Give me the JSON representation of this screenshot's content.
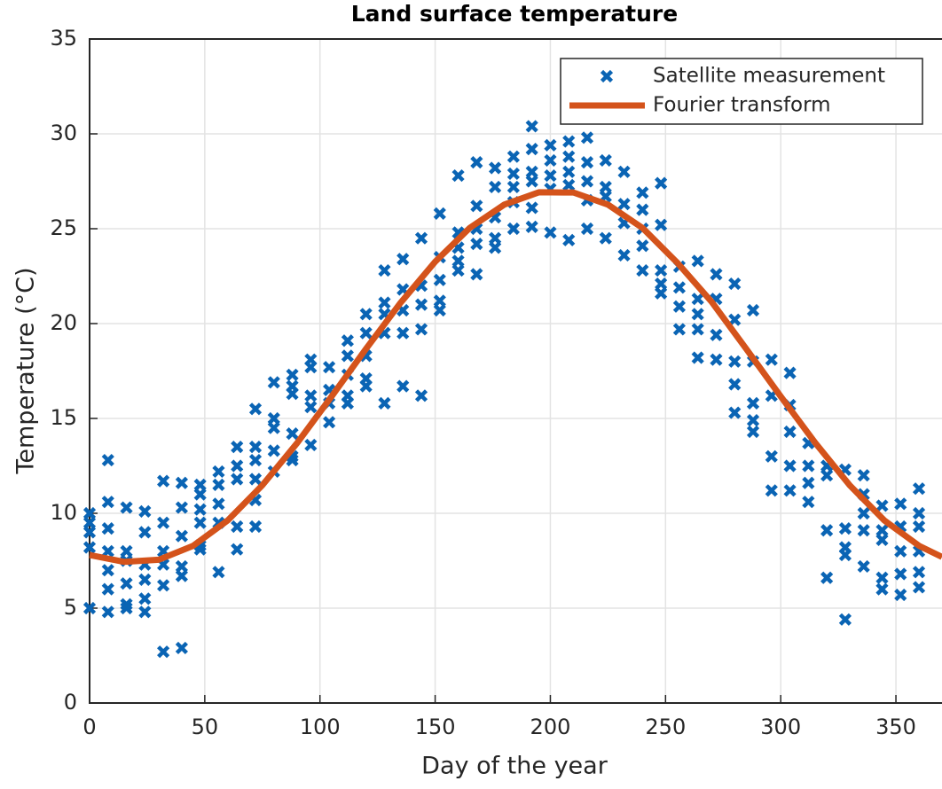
{
  "chart_data": {
    "type": "scatter",
    "title": "Land surface temperature",
    "x_label": "Day of the year",
    "y_label": "Temperature (°C)",
    "xlim": [
      0,
      370
    ],
    "ylim": [
      0,
      35
    ],
    "xticks": [
      0,
      50,
      100,
      150,
      200,
      250,
      300,
      350
    ],
    "yticks": [
      0,
      5,
      10,
      15,
      20,
      25,
      30,
      35
    ],
    "grid": true,
    "legend": "upper right",
    "series": [
      {
        "name": "Satellite measurement",
        "type": "scatter",
        "color": "#0a64b4",
        "x": [
          0,
          0,
          0,
          0,
          0,
          8,
          8,
          8,
          8,
          8,
          8,
          8,
          16,
          16,
          16,
          16,
          16,
          16,
          24,
          24,
          24,
          24,
          24,
          24,
          32,
          32,
          32,
          32,
          32,
          32,
          40,
          40,
          40,
          40,
          40,
          40,
          48,
          48,
          48,
          48,
          48,
          48,
          56,
          56,
          56,
          56,
          56,
          64,
          64,
          64,
          64,
          64,
          72,
          72,
          72,
          72,
          72,
          72,
          80,
          80,
          80,
          80,
          80,
          88,
          88,
          88,
          88,
          88,
          88,
          96,
          96,
          96,
          96,
          96,
          104,
          104,
          104,
          104,
          112,
          112,
          112,
          112,
          112,
          120,
          120,
          120,
          120,
          120,
          128,
          128,
          128,
          128,
          128,
          136,
          136,
          136,
          136,
          136,
          144,
          144,
          144,
          144,
          144,
          152,
          152,
          152,
          152,
          152,
          160,
          160,
          160,
          160,
          160,
          168,
          168,
          168,
          168,
          168,
          176,
          176,
          176,
          176,
          176,
          184,
          184,
          184,
          184,
          184,
          192,
          192,
          192,
          192,
          192,
          192,
          200,
          200,
          200,
          200,
          200,
          208,
          208,
          208,
          208,
          208,
          216,
          216,
          216,
          216,
          216,
          224,
          224,
          224,
          224,
          232,
          232,
          232,
          232,
          240,
          240,
          240,
          240,
          240,
          248,
          248,
          248,
          248,
          248,
          256,
          256,
          256,
          256,
          264,
          264,
          264,
          264,
          264,
          272,
          272,
          272,
          272,
          280,
          280,
          280,
          280,
          280,
          288,
          288,
          288,
          288,
          288,
          296,
          296,
          296,
          296,
          304,
          304,
          304,
          304,
          304,
          312,
          312,
          312,
          312,
          320,
          320,
          320,
          320,
          328,
          328,
          328,
          328,
          328,
          336,
          336,
          336,
          336,
          336,
          344,
          344,
          344,
          344,
          344,
          352,
          352,
          352,
          352,
          352,
          360,
          360,
          360,
          360,
          360,
          360
        ],
        "values": [
          10,
          9.5,
          9,
          8.2,
          5,
          12.8,
          10.6,
          9.2,
          8,
          7,
          6,
          4.8,
          10.3,
          8,
          7.5,
          6.3,
          5.2,
          5,
          10.1,
          9,
          7.3,
          6.5,
          5.5,
          4.8,
          11.7,
          9.5,
          8,
          7.3,
          6.2,
          2.7,
          11.6,
          10.3,
          8.8,
          7.2,
          6.7,
          2.9,
          11.5,
          11,
          10.2,
          9.5,
          8.3,
          8.1,
          12.2,
          11.5,
          10.5,
          9.5,
          6.9,
          13.5,
          12.5,
          11.8,
          9.3,
          8.1,
          15.5,
          13.5,
          12.8,
          11.8,
          10.7,
          9.3,
          16.9,
          15,
          14.5,
          13.3,
          12.2,
          17.3,
          16.7,
          16.3,
          14.2,
          13,
          12.8,
          18.1,
          17.7,
          16.2,
          15.6,
          13.6,
          17.7,
          16.5,
          15.8,
          14.8,
          19.1,
          18.3,
          17.3,
          16.2,
          15.8,
          20.5,
          19.5,
          18.3,
          17.1,
          16.7,
          22.8,
          21.1,
          20.5,
          19.5,
          15.8,
          23.4,
          21.8,
          20.7,
          19.5,
          16.7,
          24.5,
          22,
          21,
          19.7,
          16.2,
          25.8,
          23.5,
          22.3,
          21.2,
          20.7,
          27.8,
          24.8,
          24,
          23.3,
          22.8,
          28.5,
          26.2,
          25,
          24.2,
          22.6,
          28.2,
          27.2,
          25.6,
          24.5,
          24,
          28.8,
          27.9,
          27.2,
          26.4,
          25,
          30.4,
          29.2,
          28,
          27.5,
          26.1,
          25.1,
          29.4,
          28.6,
          27.8,
          27.1,
          24.8,
          29.6,
          28.8,
          28,
          27.3,
          24.4,
          29.8,
          28.5,
          27.5,
          26.5,
          25,
          28.6,
          27.2,
          26.7,
          24.5,
          28,
          26.3,
          25.3,
          23.6,
          26.9,
          26,
          25,
          24.1,
          22.8,
          27.4,
          25.2,
          22.8,
          22.1,
          21.6,
          23,
          21.9,
          20.9,
          19.7,
          23.3,
          21.3,
          20.5,
          19.7,
          18.2,
          22.6,
          21.3,
          19.4,
          18.1,
          22.1,
          20.2,
          18,
          16.8,
          15.3,
          20.7,
          18,
          15.8,
          14.9,
          14.3,
          18.1,
          16.2,
          13,
          11.2,
          17.4,
          15.7,
          14.3,
          12.5,
          11.2,
          13.7,
          12.5,
          11.6,
          10.6,
          12.5,
          12,
          9.1,
          6.6,
          12.3,
          9.2,
          8.2,
          7.8,
          4.4,
          12,
          11,
          10,
          9.1,
          7.2,
          10.4,
          9.1,
          8.6,
          6.6,
          6,
          10.5,
          9.3,
          8,
          6.8,
          5.7,
          11.3,
          10,
          9.3,
          8,
          6.9,
          6.1
        ]
      },
      {
        "name": "Fourier transform",
        "type": "line",
        "color": "#d4531b",
        "x": [
          0,
          15,
          30,
          45,
          60,
          75,
          90,
          105,
          120,
          135,
          150,
          165,
          180,
          195,
          210,
          225,
          240,
          255,
          270,
          285,
          300,
          315,
          330,
          345,
          360,
          370
        ],
        "values": [
          7.8,
          7.44,
          7.55,
          8.29,
          9.63,
          11.48,
          13.69,
          16.15,
          18.67,
          21.1,
          23.26,
          25.04,
          26.27,
          26.92,
          26.91,
          26.27,
          25.04,
          23.22,
          21.15,
          18.67,
          16.16,
          13.71,
          11.47,
          9.62,
          8.29,
          7.7
        ]
      }
    ]
  }
}
